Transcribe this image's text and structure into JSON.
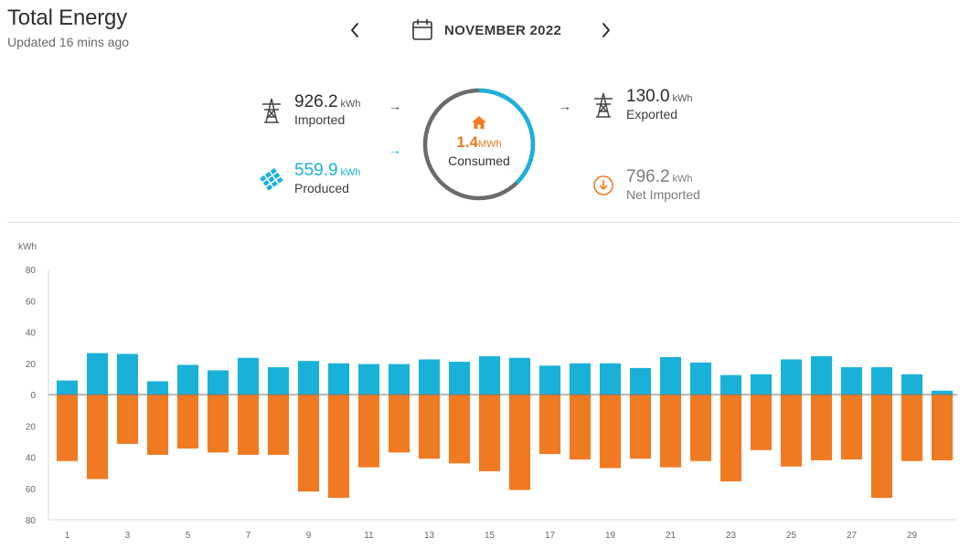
{
  "header": {
    "title": "Total Energy",
    "updated": "Updated 16 mins ago"
  },
  "period": {
    "label": "NOVEMBER 2022",
    "prev_icon": "chevron-left-icon",
    "next_icon": "chevron-right-icon",
    "calendar_icon": "calendar-icon"
  },
  "summary": {
    "imported": {
      "value": "926.2",
      "unit": "kWh",
      "label": "Imported",
      "icon": "transmission-tower-icon"
    },
    "produced": {
      "value": "559.9",
      "unit": "kWh",
      "label": "Produced",
      "icon": "solar-panel-icon"
    },
    "consumed": {
      "value": "1.4",
      "unit": "MWh",
      "label": "Consumed",
      "icon": "home-icon"
    },
    "exported": {
      "value": "130.0",
      "unit": "kWh",
      "label": "Exported",
      "icon": "transmission-tower-icon"
    },
    "net_imported": {
      "value": "796.2",
      "unit": "kWh",
      "label": "Net Imported",
      "icon": "arrow-down-circle-icon"
    },
    "arrow_glyph": "→"
  },
  "colors": {
    "produced": "#1ab1d9",
    "consumed": "#f07a22",
    "grid": "#767676",
    "muted": "#7d7d7d",
    "ring_track": "#6b6b6b"
  },
  "chart_data": {
    "type": "bar",
    "ylabel": "kWh",
    "ylim": [
      -80,
      80
    ],
    "yticks": [
      80,
      60,
      40,
      20,
      0,
      20,
      40,
      60,
      80
    ],
    "ytick_values": [
      80,
      60,
      40,
      20,
      0,
      -20,
      -40,
      -60,
      -80
    ],
    "xtick_labels": [
      "1",
      "3",
      "5",
      "7",
      "9",
      "11",
      "13",
      "15",
      "17",
      "19",
      "21",
      "23",
      "25",
      "27",
      "29"
    ],
    "categories": [
      "1",
      "2",
      "3",
      "4",
      "5",
      "6",
      "7",
      "8",
      "9",
      "10",
      "11",
      "12",
      "13",
      "14",
      "15",
      "16",
      "17",
      "18",
      "19",
      "20",
      "21",
      "22",
      "23",
      "24",
      "25",
      "26",
      "27",
      "28",
      "29",
      "30"
    ],
    "series": [
      {
        "name": "Produced",
        "values": [
          9,
          26.5,
          26,
          8.5,
          19,
          15.5,
          23.5,
          17.5,
          21.5,
          20,
          19.5,
          19.5,
          22.5,
          21,
          24.5,
          23.5,
          18.5,
          20,
          20,
          17,
          24,
          20.5,
          12.5,
          13,
          22.5,
          24.5,
          17.5,
          17.5,
          13,
          2.5
        ]
      },
      {
        "name": "Consumed",
        "values": [
          -42.5,
          -54,
          -31.5,
          -38.5,
          -34.5,
          -37,
          -38.5,
          -38.5,
          -62,
          -66,
          -46.5,
          -37,
          -41,
          -44,
          -49,
          -61,
          -38,
          -41.5,
          -47,
          -41,
          -46.5,
          -42.5,
          -55.5,
          -35.5,
          -46,
          -42,
          -41.5,
          -66,
          -42.5,
          -42
        ]
      }
    ],
    "grid": false,
    "legend": "none"
  }
}
